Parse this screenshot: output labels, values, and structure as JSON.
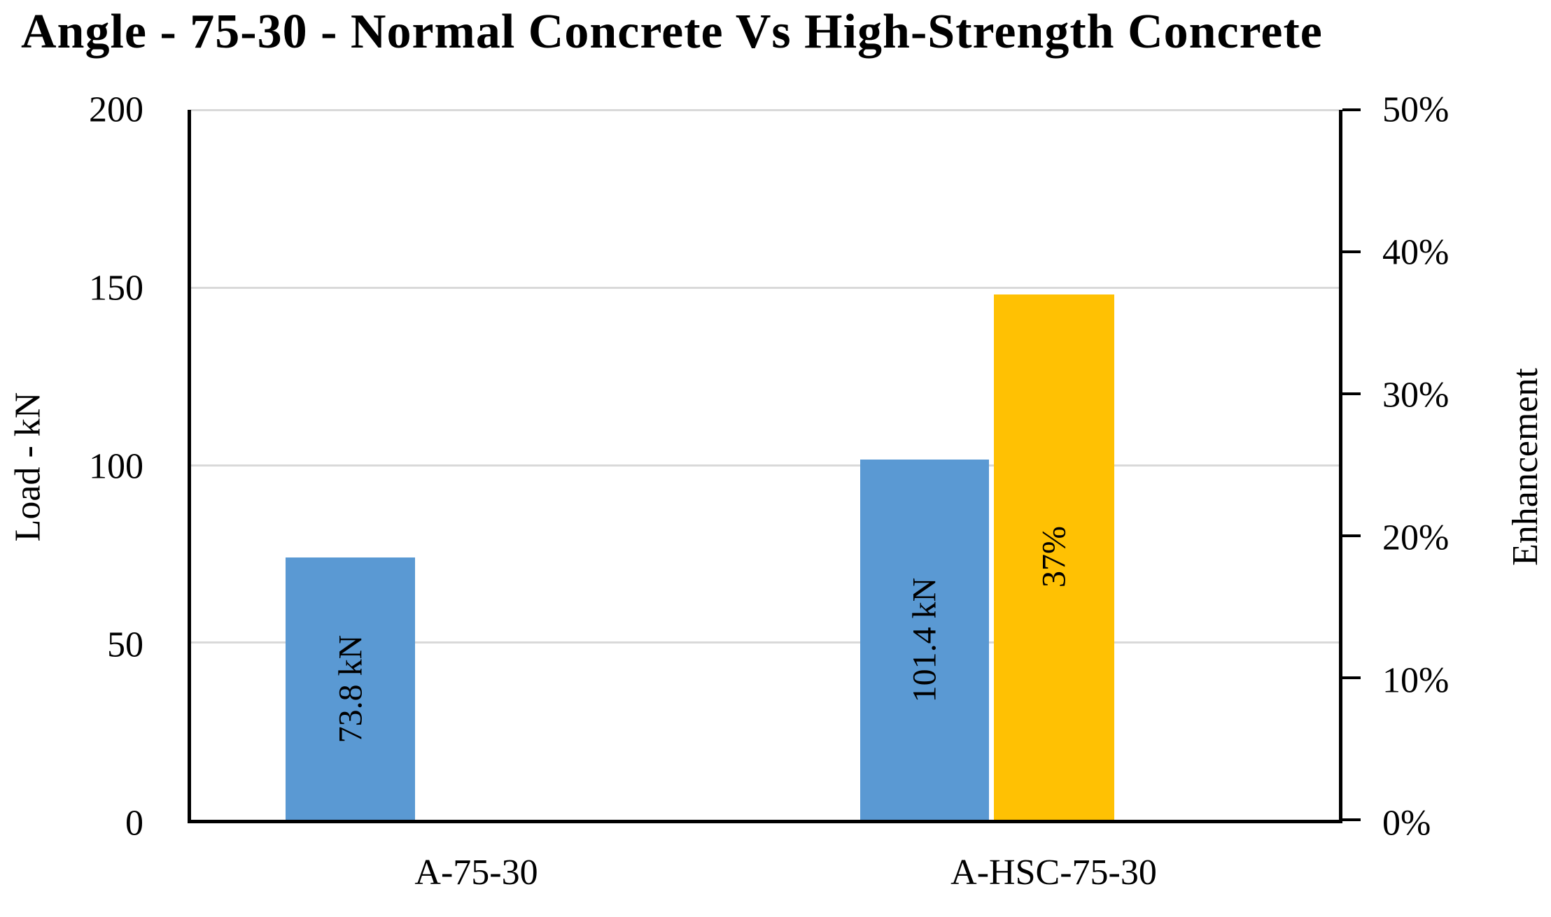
{
  "chart_data": {
    "type": "bar",
    "title": "Angle - 75-30 - Normal Concrete Vs High-Strength Concrete",
    "categories": [
      "A-75-30",
      "A-HSC-75-30"
    ],
    "series": [
      {
        "name": "Load - kN",
        "axis": "left",
        "color": "#5A99D3",
        "values": [
          73.8,
          101.4
        ],
        "bar_labels": [
          "73.8 kN",
          "101.4 kN"
        ]
      },
      {
        "name": "Enhancement",
        "axis": "right",
        "color": "#FFC103",
        "values": [
          null,
          37
        ],
        "bar_labels": [
          null,
          "37%"
        ]
      }
    ],
    "ylabel_left": "Load - kN",
    "ylabel_right": "Enhancement",
    "left_axis": {
      "min": 0,
      "max": 200,
      "ticks": [
        "0",
        "50",
        "100",
        "150",
        "200"
      ]
    },
    "right_axis": {
      "min": 0,
      "max": 50,
      "ticks": [
        "0%",
        "10%",
        "20%",
        "30%",
        "40%",
        "50%"
      ]
    },
    "grid": "horizontal",
    "legend": "none",
    "colors": {
      "gridline": "#D9D9D9",
      "axis": "#000000",
      "text": "#000000",
      "background": "#FFFFFF"
    }
  }
}
